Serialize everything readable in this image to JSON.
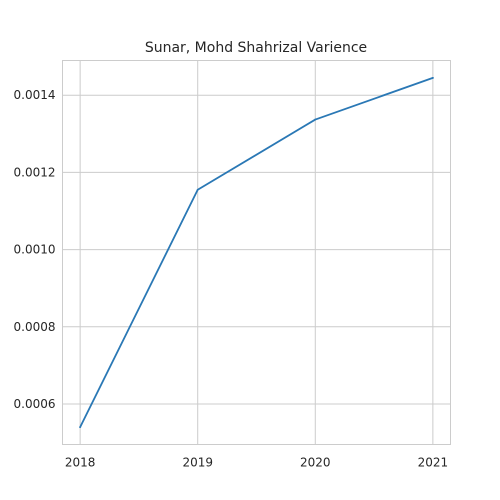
{
  "chart_data": {
    "type": "line",
    "title": "Sunar, Mohd Shahrizal Varience",
    "xlabel": "",
    "ylabel": "",
    "x": [
      "2018",
      "2019",
      "2020",
      "2021"
    ],
    "series": [
      {
        "values": [
          0.00054,
          0.001155,
          0.001337,
          0.001445
        ],
        "color": "#2a78b5"
      }
    ],
    "xlim": [
      2017.85,
      2021.15
    ],
    "ylim": [
      0.000495,
      0.00149
    ],
    "y_ticks": [
      0.0006,
      0.0008,
      0.001,
      0.0012,
      0.0014
    ],
    "y_tick_labels": [
      "0.0006",
      "0.0008",
      "0.0010",
      "0.0012",
      "0.0014"
    ],
    "x_tick_labels": [
      "2018",
      "2019",
      "2020",
      "2021"
    ],
    "grid": true,
    "legend": "none"
  }
}
